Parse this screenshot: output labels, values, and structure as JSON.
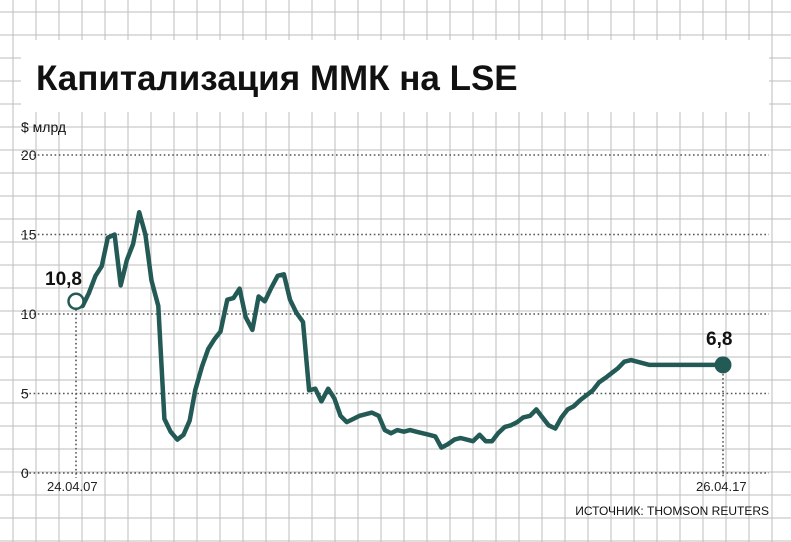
{
  "chart_data": {
    "type": "line",
    "title": "Капитализация ММК на LSE",
    "ylabel": "$ млрд",
    "ylim": [
      0,
      20
    ],
    "yticks": [
      "0",
      "5",
      "10",
      "15",
      "20"
    ],
    "x_start_label": "24.04.07",
    "x_end_label": "26.04.17",
    "start_value_label": "10,8",
    "end_value_label": "6,8",
    "source": "ИСТОЧНИК: THOMSON REUTERS",
    "grid": true,
    "series": [
      {
        "x": [
          0,
          0.0102,
          0.0198,
          0.0302,
          0.0397,
          0.0492,
          0.0596,
          0.0691,
          0.0786,
          0.0882,
          0.0977,
          0.1072,
          0.1167,
          0.1272,
          0.1367,
          0.1462,
          0.1566,
          0.1662,
          0.1757,
          0.1843,
          0.1948,
          0.2043,
          0.2138,
          0.2233,
          0.2338,
          0.2432,
          0.2528,
          0.2623,
          0.2727,
          0.2823,
          0.2918,
          0.3013,
          0.3118,
          0.3213,
          0.3308,
          0.3403,
          0.3508,
          0.3603,
          0.3698,
          0.3793,
          0.3898,
          0.3993,
          0.4088,
          0.4184,
          0.4288,
          0.4383,
          0.4478,
          0.4574,
          0.4678,
          0.4773,
          0.4868,
          0.4964,
          0.5068,
          0.5163,
          0.5258,
          0.5363,
          0.5458,
          0.5553,
          0.5648,
          0.5744,
          0.5848,
          0.5943,
          0.6038,
          0.6134,
          0.6238,
          0.6333,
          0.6429,
          0.6524,
          0.6628,
          0.6723,
          0.6819,
          0.6914,
          0.7018,
          0.7114,
          0.7209,
          0.7304,
          0.7408,
          0.7504,
          0.7599,
          0.7694,
          0.7798,
          0.7894,
          0.7989,
          0.8084,
          0.8189,
          0.8284,
          0.8379,
          0.8474,
          0.8579,
          0.8674,
          0.8769,
          0.8864,
          0.8969,
          0.9064,
          0.9159,
          0.9254,
          0.9359,
          0.9454,
          0.9549,
          0.9644,
          0.9749,
          0.9844,
          0.9939,
          1.0
        ],
        "values": [
          10.8,
          10.5,
          11.3,
          12.4,
          13.0,
          14.8,
          15.0,
          11.8,
          13.4,
          14.4,
          16.4,
          15.0,
          12.1,
          10.5,
          3.4,
          2.6,
          2.1,
          2.4,
          3.3,
          5.2,
          6.7,
          7.8,
          8.4,
          8.9,
          10.9,
          11.0,
          11.6,
          9.8,
          9.0,
          11.1,
          10.8,
          11.6,
          12.4,
          12.5,
          10.9,
          10.1,
          9.5,
          5.2,
          5.3,
          4.5,
          5.3,
          4.7,
          3.6,
          3.2,
          3.4,
          3.6,
          3.7,
          3.8,
          3.6,
          2.7,
          2.5,
          2.7,
          2.6,
          2.7,
          2.6,
          2.5,
          2.4,
          2.3,
          1.6,
          1.8,
          2.1,
          2.2,
          2.1,
          2.0,
          2.4,
          2.0,
          2.0,
          2.5,
          2.9,
          3.0,
          3.2,
          3.5,
          3.6,
          4.0,
          3.5,
          3.0,
          2.8,
          3.5,
          4.0,
          4.2,
          4.6,
          4.9,
          5.2,
          5.7,
          6.0,
          6.3,
          6.6,
          7.0,
          7.1,
          7.0,
          6.9,
          6.8,
          6.8,
          6.8,
          6.8,
          6.8,
          6.8,
          6.8,
          6.8,
          6.8,
          6.8,
          6.8,
          6.8,
          6.8
        ]
      }
    ],
    "line_color": "#245a55"
  }
}
